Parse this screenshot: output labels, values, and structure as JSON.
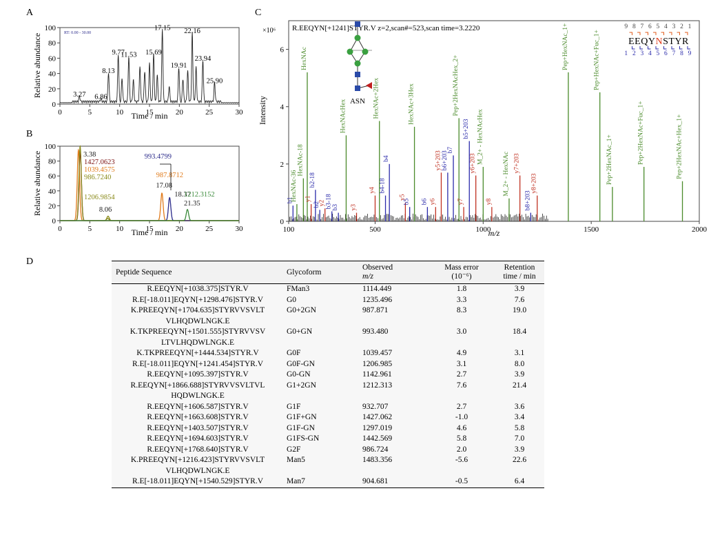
{
  "panels": {
    "a": "A",
    "b": "B",
    "c": "C",
    "d": "D"
  },
  "colors": {
    "black": "#1a1a1a",
    "darkred": "#7a1010",
    "orange": "#e07a1a",
    "olive": "#8a8a1a",
    "navy": "#2a2a8a",
    "green": "#3a8a3a",
    "blue": "#2a2aaa",
    "red": "#c03020",
    "glyco_green": "#4a8a2a"
  },
  "chart_data": [
    {
      "id": "A",
      "type": "line",
      "title": "",
      "xlabel": "Time / min",
      "ylabel": "Relative abundance",
      "xlim": [
        0,
        30
      ],
      "ylim": [
        0,
        100
      ],
      "xticks": [
        0,
        5,
        10,
        15,
        20,
        25,
        30
      ],
      "yticks": [
        0,
        20,
        40,
        60,
        80,
        100
      ],
      "inset_label": "RT: 0.00 - 30.00",
      "series": [
        {
          "name": "TIC",
          "peaks": [
            [
              3.27,
              7
            ],
            [
              6.86,
              4
            ],
            [
              8.13,
              38
            ],
            [
              9.77,
              62
            ],
            [
              10.4,
              30
            ],
            [
              11.53,
              59
            ],
            [
              12.3,
              28
            ],
            [
              13.4,
              45
            ],
            [
              14.2,
              40
            ],
            [
              15.0,
              50
            ],
            [
              15.69,
              62
            ],
            [
              16.3,
              35
            ],
            [
              17.15,
              94
            ],
            [
              18.3,
              20
            ],
            [
              19.91,
              45
            ],
            [
              20.6,
              30
            ],
            [
              21.4,
              40
            ],
            [
              22.16,
              90
            ],
            [
              22.8,
              45
            ],
            [
              23.94,
              54
            ],
            [
              25.9,
              25
            ]
          ]
        }
      ],
      "labels": [
        {
          "x": 3.27,
          "y": 7,
          "text": "3.27"
        },
        {
          "x": 6.86,
          "y": 4,
          "text": "6.86"
        },
        {
          "x": 8.13,
          "y": 38,
          "text": "8.13"
        },
        {
          "x": 9.77,
          "y": 62,
          "text": "9.77"
        },
        {
          "x": 11.53,
          "y": 59,
          "text": "11.53"
        },
        {
          "x": 15.69,
          "y": 62,
          "text": "15.69"
        },
        {
          "x": 17.15,
          "y": 94,
          "text": "17.15"
        },
        {
          "x": 19.91,
          "y": 45,
          "text": "19.91"
        },
        {
          "x": 22.16,
          "y": 90,
          "text": "22.16"
        },
        {
          "x": 23.94,
          "y": 54,
          "text": "23.94"
        },
        {
          "x": 25.9,
          "y": 25,
          "text": "25.90"
        }
      ]
    },
    {
      "id": "B",
      "type": "line",
      "title": "",
      "xlabel": "Time / min",
      "ylabel": "Relative abundance",
      "xlim": [
        0,
        30
      ],
      "ylim": [
        0,
        100
      ],
      "xticks": [
        0,
        5,
        10,
        15,
        20,
        25,
        30
      ],
      "yticks": [
        0,
        20,
        40,
        60,
        80,
        100
      ],
      "series": [
        {
          "name": "1427.0623",
          "color": "darkred",
          "peaks": [
            [
              3.4,
              92
            ]
          ]
        },
        {
          "name": "1039.4575",
          "color": "orange",
          "peaks": [
            [
              3.1,
              95
            ]
          ]
        },
        {
          "name": "986.7240",
          "color": "olive",
          "peaks": [
            [
              3.38,
              100
            ],
            [
              8.06,
              6
            ]
          ]
        },
        {
          "name": "1206.9854",
          "color": "olive",
          "peaks": [
            [
              8.0,
              3
            ]
          ]
        },
        {
          "name": "987.8712",
          "color": "orange",
          "peaks": [
            [
              17.08,
              37
            ]
          ]
        },
        {
          "name": "993.4799",
          "color": "navy",
          "peaks": [
            [
              18.37,
              31
            ]
          ]
        },
        {
          "name": "1212.3152",
          "color": "green",
          "peaks": [
            [
              21.35,
              15
            ]
          ]
        }
      ],
      "labels": [
        {
          "text": "3.38",
          "color": "black"
        },
        {
          "text": "1427.0623",
          "color": "darkred"
        },
        {
          "text": "1039.4575",
          "color": "orange"
        },
        {
          "text": "986.7240",
          "color": "olive"
        },
        {
          "text": "1206.9854",
          "color": "olive"
        },
        {
          "text": "8.06",
          "color": "black"
        },
        {
          "text": "993.4799",
          "color": "navy"
        },
        {
          "text": "987.8712",
          "color": "orange"
        },
        {
          "text": "17.08",
          "color": "black"
        },
        {
          "text": "18.37",
          "color": "black"
        },
        {
          "text": "1212.3152",
          "color": "green"
        },
        {
          "text": "21.35",
          "color": "black"
        }
      ]
    },
    {
      "id": "C",
      "type": "bar",
      "title": "R.EEQYN[+1241]STYR.V z=2,scan#=523,scan time=3.2220",
      "xlabel": "m/z",
      "ylabel": "Intensity",
      "y_multiplier": "×10⁶",
      "xlim": [
        100,
        2000
      ],
      "ylim": [
        0,
        7
      ],
      "xticks": [
        100,
        500,
        1000,
        1500,
        2000
      ],
      "yticks": [
        0,
        2,
        4,
        6
      ],
      "glycan_label": "ASN",
      "sequence": {
        "top_numbers": "9 8 7 6 5 4 3 2 1",
        "peptide": "EEQYNSTYR",
        "bottom_numbers": "1 2 3 4 5 6 7 8 9"
      },
      "peaks": [
        {
          "mz": 120,
          "i": 0.55,
          "label": "b1",
          "color": "blue"
        },
        {
          "mz": 138,
          "i": 0.6,
          "label": "HexNAc-36",
          "color": "glyco_green"
        },
        {
          "mz": 168,
          "i": 1.5,
          "label": "HexNAc-18",
          "color": "glyco_green"
        },
        {
          "mz": 186,
          "i": 5.2,
          "label": "HexNAc",
          "color": "glyco_green"
        },
        {
          "mz": 204,
          "i": 0.6,
          "label": "y1",
          "color": "red"
        },
        {
          "mz": 224,
          "i": 1.1,
          "label": "b2-18",
          "color": "blue"
        },
        {
          "mz": 244,
          "i": 0.4,
          "label": "b2",
          "color": "blue"
        },
        {
          "mz": 268,
          "i": 0.45,
          "label": "y2",
          "color": "red"
        },
        {
          "mz": 300,
          "i": 0.35,
          "label": "b3-18",
          "color": "blue"
        },
        {
          "mz": 330,
          "i": 0.3,
          "label": "b3",
          "color": "blue"
        },
        {
          "mz": 366,
          "i": 3.0,
          "label": "HexNAcHex",
          "color": "glyco_green"
        },
        {
          "mz": 414,
          "i": 0.3,
          "label": "y3",
          "color": "red"
        },
        {
          "mz": 500,
          "i": 0.9,
          "label": "y4",
          "color": "red"
        },
        {
          "mz": 520,
          "i": 3.5,
          "label": "HexNAc+2Hex",
          "color": "glyco_green"
        },
        {
          "mz": 548,
          "i": 0.9,
          "label": "b4-18",
          "color": "blue"
        },
        {
          "mz": 566,
          "i": 2.0,
          "label": "b4",
          "color": "blue"
        },
        {
          "mz": 640,
          "i": 0.65,
          "label": "y5",
          "color": "red"
        },
        {
          "mz": 660,
          "i": 0.5,
          "label": "b5",
          "color": "blue"
        },
        {
          "mz": 682,
          "i": 3.3,
          "label": "HexNAc+3Hex",
          "color": "glyco_green"
        },
        {
          "mz": 742,
          "i": 0.5,
          "label": "b6",
          "color": "blue"
        },
        {
          "mz": 780,
          "i": 0.5,
          "label": "y6",
          "color": "red"
        },
        {
          "mz": 806,
          "i": 1.7,
          "label": "y5+203",
          "color": "red"
        },
        {
          "mz": 836,
          "i": 1.7,
          "label": "b6+203",
          "color": "blue"
        },
        {
          "mz": 862,
          "i": 2.3,
          "label": "b7",
          "color": "blue"
        },
        {
          "mz": 888,
          "i": 3.6,
          "label": "Pep+2HexNAcHex_2+",
          "color": "glyco_green"
        },
        {
          "mz": 910,
          "i": 0.5,
          "label": "y7",
          "color": "red"
        },
        {
          "mz": 936,
          "i": 2.8,
          "label": "b5+203",
          "color": "blue"
        },
        {
          "mz": 966,
          "i": 1.6,
          "label": "y6+203",
          "color": "red"
        },
        {
          "mz": 1000,
          "i": 1.9,
          "label": "M_2+ - HexNAcHex",
          "color": "glyco_green"
        },
        {
          "mz": 1040,
          "i": 0.5,
          "label": "y8",
          "color": "red"
        },
        {
          "mz": 1120,
          "i": 0.8,
          "label": "M_2+ - HexNAc",
          "color": "glyco_green"
        },
        {
          "mz": 1170,
          "i": 1.6,
          "label": "y7+203",
          "color": "red"
        },
        {
          "mz": 1220,
          "i": 0.3,
          "label": "b8+203",
          "color": "blue"
        },
        {
          "mz": 1250,
          "i": 0.9,
          "label": "y8+203",
          "color": "red"
        },
        {
          "mz": 1394,
          "i": 5.2,
          "label": "Pep+HexNAc_1+",
          "color": "glyco_green"
        },
        {
          "mz": 1540,
          "i": 4.5,
          "label": "Pep+HexNAc+Fuc_1+",
          "color": "glyco_green"
        },
        {
          "mz": 1598,
          "i": 1.2,
          "label": "Pep+2HexNAc_1+",
          "color": "glyco_green"
        },
        {
          "mz": 1744,
          "i": 1.9,
          "label": "Pep+2HexNAc+Fuc_1+",
          "color": "glyco_green"
        },
        {
          "mz": 1922,
          "i": 1.4,
          "label": "Pep+2HexNAc+Hex_1+",
          "color": "glyco_green"
        }
      ]
    }
  ],
  "table": {
    "headers": {
      "seq": "Peptide Sequence",
      "glycoform": "Glycoform",
      "mz_line1": "Observed",
      "mz_line2": "m/z",
      "me_line1": "Mass error",
      "me_line2": "(10⁻⁶)",
      "rt_line1": "Retention",
      "rt_line2": "time / min"
    },
    "rows": [
      {
        "seq": "R.EEQYN[+1038.375]STYR.V",
        "glycoform": "FMan3",
        "mz": "1114.449",
        "me": "1.8",
        "rt": "3.9"
      },
      {
        "seq": "R.E[-18.011]EQYN[+1298.476]STYR.V",
        "glycoform": "G0",
        "mz": "1235.496",
        "me": "3.3",
        "rt": "7.6"
      },
      {
        "seq": "K.PREEQYN[+1704.635]STYRVVSVLT VLHQDWLNGK.E",
        "glycoform": "G0+2GN",
        "mz": "987.871",
        "me": "8.3",
        "rt": "19.0"
      },
      {
        "seq": "K.TKPREEQYN[+1501.555]STYRVVSV LTVLHQDWLNGK.E",
        "glycoform": "G0+GN",
        "mz": "993.480",
        "me": "3.0",
        "rt": "18.4"
      },
      {
        "seq": "K.TKPREEQYN[+1444.534]STYR.V",
        "glycoform": "G0F",
        "mz": "1039.457",
        "me": "4.9",
        "rt": "3.1"
      },
      {
        "seq": "R.E[-18.011]EQYN[+1241.454]STYR.V",
        "glycoform": "G0F-GN",
        "mz": "1206.985",
        "me": "3.1",
        "rt": "8.0"
      },
      {
        "seq": "R.EEQYN[+1095.397]STYR.V",
        "glycoform": "G0-GN",
        "mz": "1142.961",
        "me": "2.7",
        "rt": "3.9"
      },
      {
        "seq": "R.EEQYN[+1866.688]STYRVVSVLTVL HQDWLNGK.E",
        "glycoform": "G1+2GN",
        "mz": "1212.313",
        "me": "7.6",
        "rt": "21.4"
      },
      {
        "seq": "R.EEQYN[+1606.587]STYR.V",
        "glycoform": "G1F",
        "mz": "932.707",
        "me": "2.7",
        "rt": "3.6"
      },
      {
        "seq": "R.EEQYN[+1663.608]STYR.V",
        "glycoform": "G1F+GN",
        "mz": "1427.062",
        "me": "-1.0",
        "rt": "3.4"
      },
      {
        "seq": "R.EEQYN[+1403.507]STYR.V",
        "glycoform": "G1F-GN",
        "mz": "1297.019",
        "me": "4.6",
        "rt": "5.8"
      },
      {
        "seq": "R.EEQYN[+1694.603]STYR.V",
        "glycoform": "G1FS-GN",
        "mz": "1442.569",
        "me": "5.8",
        "rt": "7.0"
      },
      {
        "seq": "R.EEQYN[+1768.640]STYR.V",
        "glycoform": "G2F",
        "mz": "986.724",
        "me": "2.0",
        "rt": "3.9"
      },
      {
        "seq": "K.PREEQYN[+1216.423]STYRVVSVLT VLHQDWLNGK.E",
        "glycoform": "Man5",
        "mz": "1483.356",
        "me": "-5.6",
        "rt": "22.6"
      },
      {
        "seq": "R.E[-18.011]EQYN[+1540.529]STYR.V",
        "glycoform": "Man7",
        "mz": "904.681",
        "me": "-0.5",
        "rt": "6.4"
      }
    ]
  }
}
